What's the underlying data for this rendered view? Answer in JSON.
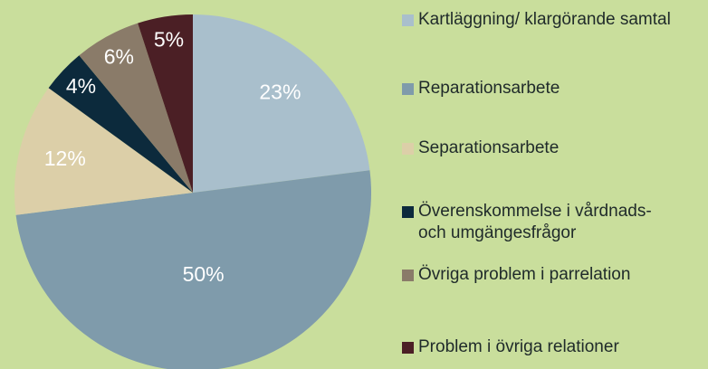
{
  "chart_data": {
    "type": "pie",
    "categories": [
      "Kartläggning/ klargörande samtal",
      "Reparationsarbete",
      "Separationsarbete",
      "Överenskommelse i vårdnads- och umgängesfrågor",
      "Övriga problem i parrelation",
      "Problem i övriga relationer"
    ],
    "values": [
      23,
      50,
      12,
      4,
      6,
      5
    ],
    "value_labels": [
      "23%",
      "50%",
      "12%",
      "4%",
      "6%",
      "5%"
    ],
    "colors": [
      "#a9bfcc",
      "#7f9bab",
      "#dccfa8",
      "#0c2a3c",
      "#8a7b69",
      "#4b1f25"
    ]
  }
}
